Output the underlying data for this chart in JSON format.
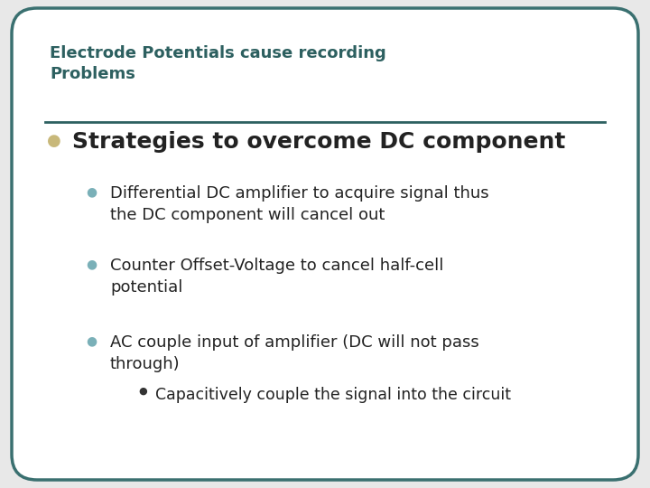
{
  "background_color": "#e8e8e8",
  "border_color": "#3a7070",
  "border_linewidth": 2.5,
  "title": "Electrode Potentials cause recording\nProblems",
  "title_color": "#2d6060",
  "title_fontsize": 13,
  "title_bold": true,
  "separator_color": "#2d6060",
  "bullet1_text": "Strategies to overcome DC component",
  "bullet1_color": "#222222",
  "bullet1_fontsize": 18,
  "bullet1_bullet_color": "#c8b87a",
  "sub_bullets": [
    "Differential DC amplifier to acquire signal thus\nthe DC component will cancel out",
    "Counter Offset-Voltage to cancel half-cell\npotential",
    "AC couple input of amplifier (DC will not pass\nthrough)"
  ],
  "sub_bullet_color": "#222222",
  "sub_bullet_fontsize": 13,
  "sub_bullet_dot_color": "#7ab0b8",
  "sub_sub_bullet": "Capacitively couple the signal into the circuit",
  "sub_sub_bullet_fontsize": 12.5,
  "sub_sub_bullet_color": "#222222",
  "sub_sub_bullet_dot_color": "#333333"
}
